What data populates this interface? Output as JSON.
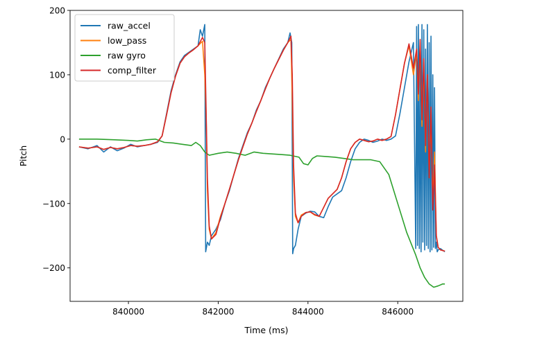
{
  "chart_data": {
    "type": "line",
    "title": "",
    "xlabel": "Time (ms)",
    "ylabel": "Pitch",
    "xlim": [
      838700,
      847450
    ],
    "ylim": [
      -252,
      200
    ],
    "x_ticks": [
      840000,
      842000,
      844000,
      846000
    ],
    "x_tick_labels": [
      "840000",
      "842000",
      "844000",
      "846000"
    ],
    "y_ticks": [
      200,
      100,
      0,
      -100,
      -200
    ],
    "y_tick_labels": [
      "200",
      "100",
      "0",
      "−100",
      "−200"
    ],
    "grid": false,
    "legend_position": "top-left",
    "series": [
      {
        "name": "raw_accel",
        "color": "#1f77b4",
        "x": [
          838900,
          839100,
          839300,
          839450,
          839600,
          839750,
          839900,
          840050,
          840200,
          840350,
          840500,
          840650,
          840750,
          840850,
          840950,
          841050,
          841150,
          841250,
          841350,
          841450,
          841550,
          841600,
          841650,
          841700,
          841720,
          841760,
          841800,
          841850,
          841950,
          842050,
          842150,
          842250,
          842350,
          842450,
          842550,
          842650,
          842750,
          842850,
          842950,
          843050,
          843150,
          843250,
          843350,
          843450,
          843550,
          843600,
          843640,
          843660,
          843680,
          843720,
          843780,
          843850,
          843950,
          844050,
          844150,
          844250,
          844350,
          844450,
          844550,
          844650,
          844750,
          844850,
          844950,
          845050,
          845150,
          845250,
          845350,
          845450,
          845550,
          845650,
          845750,
          845850,
          845950,
          846050,
          846150,
          846250,
          846350,
          846400,
          846420,
          846440,
          846460,
          846480,
          846500,
          846520,
          846540,
          846560,
          846580,
          846600,
          846620,
          846640,
          846660,
          846680,
          846700,
          846720,
          846740,
          846760,
          846780,
          846800,
          846820,
          846840,
          846860,
          846880,
          846900,
          846950,
          847050
        ],
        "y": [
          -12,
          -15,
          -10,
          -20,
          -12,
          -18,
          -14,
          -8,
          -12,
          -10,
          -8,
          -5,
          5,
          40,
          75,
          100,
          120,
          130,
          135,
          140,
          145,
          170,
          160,
          178,
          -175,
          -160,
          -165,
          -150,
          -140,
          -125,
          -100,
          -80,
          -55,
          -30,
          -10,
          10,
          25,
          45,
          60,
          80,
          95,
          110,
          125,
          140,
          150,
          165,
          150,
          -178,
          -170,
          -165,
          -140,
          -120,
          -115,
          -112,
          -113,
          -120,
          -122,
          -105,
          -90,
          -85,
          -80,
          -60,
          -35,
          -15,
          -5,
          0,
          -2,
          -5,
          -3,
          0,
          -2,
          0,
          5,
          40,
          80,
          120,
          150,
          -170,
          175,
          -165,
          178,
          -170,
          120,
          -175,
          178,
          -160,
          170,
          -172,
          140,
          -165,
          178,
          -170,
          150,
          -175,
          160,
          -172,
          100,
          -168,
          80,
          -170,
          -160,
          -175,
          -172,
          -170,
          -175
        ]
      },
      {
        "name": "low_pass",
        "color": "#ff7f0e",
        "x": [
          838900,
          839100,
          839300,
          839450,
          839600,
          839750,
          839900,
          840050,
          840200,
          840350,
          840500,
          840650,
          840750,
          840850,
          840950,
          841050,
          841150,
          841250,
          841350,
          841450,
          841550,
          841650,
          841700,
          841730,
          841760,
          841800,
          841850,
          841950,
          842050,
          842150,
          842250,
          842350,
          842450,
          842550,
          842650,
          842750,
          842850,
          842950,
          843050,
          843150,
          843250,
          843350,
          843450,
          843550,
          843620,
          843650,
          843680,
          843720,
          843780,
          843850,
          843950,
          844050,
          844150,
          844250,
          844350,
          844450,
          844550,
          844650,
          844750,
          844850,
          844950,
          845050,
          845150,
          845250,
          845350,
          845450,
          845550,
          845650,
          845750,
          845850,
          845950,
          846050,
          846150,
          846250,
          846350,
          846420,
          846460,
          846500,
          846540,
          846580,
          846620,
          846660,
          846700,
          846740,
          846780,
          846820,
          846860,
          846900,
          846950,
          847050
        ],
        "y": [
          -12,
          -14,
          -12,
          -16,
          -13,
          -15,
          -13,
          -10,
          -11,
          -10,
          -8,
          -4,
          5,
          38,
          72,
          98,
          118,
          128,
          134,
          139,
          145,
          152,
          100,
          40,
          -80,
          -140,
          -155,
          -145,
          -120,
          -100,
          -78,
          -55,
          -32,
          -12,
          8,
          25,
          43,
          60,
          78,
          95,
          110,
          124,
          138,
          150,
          155,
          60,
          -60,
          -120,
          -130,
          -118,
          -114,
          -113,
          -118,
          -120,
          -106,
          -92,
          -85,
          -78,
          -60,
          -35,
          -15,
          -5,
          0,
          -2,
          -4,
          -3,
          0,
          -2,
          0,
          4,
          38,
          78,
          118,
          145,
          100,
          135,
          60,
          150,
          20,
          120,
          -20,
          100,
          -60,
          40,
          -100,
          -20,
          -150,
          -168,
          -172,
          -174
        ]
      },
      {
        "name": "raw gyro",
        "color": "#2ca02c",
        "x": [
          838900,
          839300,
          839700,
          840000,
          840200,
          840400,
          840600,
          840800,
          841000,
          841200,
          841400,
          841500,
          841600,
          841700,
          841800,
          842000,
          842200,
          842400,
          842600,
          842800,
          843000,
          843200,
          843400,
          843600,
          843800,
          843900,
          844000,
          844100,
          844200,
          844400,
          844600,
          844800,
          845000,
          845200,
          845400,
          845600,
          845800,
          846000,
          846200,
          846400,
          846500,
          846600,
          846700,
          846800,
          846900,
          847000,
          847050
        ],
        "y": [
          0,
          0,
          -1,
          -2,
          -3,
          -1,
          0,
          -5,
          -6,
          -8,
          -10,
          -5,
          -10,
          -20,
          -25,
          -22,
          -20,
          -22,
          -25,
          -20,
          -22,
          -23,
          -24,
          -25,
          -28,
          -38,
          -40,
          -30,
          -26,
          -27,
          -28,
          -30,
          -32,
          -32,
          -32,
          -35,
          -55,
          -100,
          -145,
          -180,
          -200,
          -215,
          -225,
          -230,
          -228,
          -225,
          -225
        ]
      },
      {
        "name": "comp_filter",
        "color": "#d62728",
        "x": [
          838900,
          839100,
          839300,
          839450,
          839600,
          839750,
          839900,
          840050,
          840200,
          840350,
          840500,
          840650,
          840750,
          840850,
          840950,
          841050,
          841150,
          841250,
          841350,
          841450,
          841550,
          841650,
          841700,
          841720,
          841760,
          841800,
          841850,
          841950,
          842050,
          842150,
          842250,
          842350,
          842450,
          842550,
          842650,
          842750,
          842850,
          842950,
          843050,
          843150,
          843250,
          843350,
          843450,
          843550,
          843620,
          843650,
          843680,
          843720,
          843780,
          843850,
          843950,
          844050,
          844150,
          844250,
          844350,
          844450,
          844550,
          844650,
          844750,
          844850,
          844950,
          845050,
          845150,
          845250,
          845350,
          845450,
          845550,
          845650,
          845750,
          845850,
          845950,
          846050,
          846150,
          846250,
          846350,
          846420,
          846460,
          846500,
          846540,
          846580,
          846620,
          846660,
          846700,
          846740,
          846780,
          846820,
          846860,
          846900,
          846950,
          847050
        ],
        "y": [
          -12,
          -14,
          -12,
          -16,
          -13,
          -15,
          -13,
          -10,
          -11,
          -10,
          -8,
          -4,
          5,
          38,
          72,
          98,
          118,
          128,
          134,
          139,
          145,
          158,
          150,
          80,
          -60,
          -135,
          -155,
          -148,
          -122,
          -100,
          -78,
          -55,
          -32,
          -12,
          8,
          25,
          43,
          60,
          78,
          95,
          110,
          124,
          138,
          150,
          160,
          100,
          -40,
          -115,
          -130,
          -120,
          -114,
          -113,
          -117,
          -120,
          -106,
          -92,
          -85,
          -78,
          -60,
          -35,
          -15,
          -5,
          0,
          -2,
          -4,
          -3,
          0,
          -2,
          0,
          4,
          38,
          78,
          118,
          148,
          110,
          140,
          70,
          155,
          30,
          125,
          -10,
          100,
          -60,
          50,
          -110,
          -40,
          -150,
          -168,
          -172,
          -174
        ]
      }
    ]
  }
}
